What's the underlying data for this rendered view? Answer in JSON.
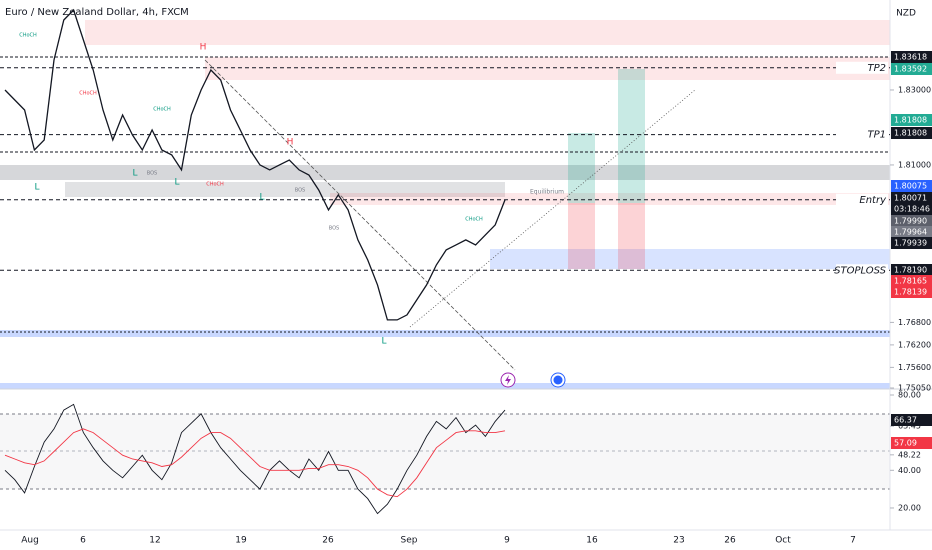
{
  "header": {
    "title": "Euro / New Zealand Dollar, 4h, FXCM",
    "currency": "NZD"
  },
  "chart_data": [
    {
      "type": "line",
      "color": "#131722",
      "values": [
        1.83,
        1.82733,
        1.82467,
        1.814,
        1.81667,
        1.838,
        1.84867,
        1.85133,
        1.84333,
        1.83533,
        1.82467,
        1.81667,
        1.82333,
        1.818,
        1.814,
        1.81933,
        1.814,
        1.81267,
        1.80867,
        1.82333,
        1.83,
        1.83533,
        1.83267,
        1.82467,
        1.81933,
        1.814,
        1.81,
        1.80867,
        1.81,
        1.81133,
        1.80867,
        1.80733,
        1.80333,
        1.798,
        1.802,
        1.798,
        1.79,
        1.78467,
        1.778,
        1.76867,
        1.76867,
        1.77,
        1.774,
        1.778,
        1.78333,
        1.78733,
        1.78867,
        1.79,
        1.78867,
        1.79133,
        1.794,
        1.80067
      ],
      "ylim": [
        1.7513,
        1.854
      ],
      "yticks": [
        {
          "value": 1.83,
          "label": "1.83000"
        },
        {
          "value": 1.81,
          "label": "1.81000"
        },
        {
          "value": 1.768,
          "label": "1.76800"
        },
        {
          "value": 1.762,
          "label": "1.76200"
        },
        {
          "value": 1.756,
          "label": "1.75600"
        },
        {
          "value": 1.7505,
          "label": "1.75050"
        }
      ],
      "levels": [
        {
          "name": "TP2",
          "value": 1.83592
        },
        {
          "name": "TP1",
          "value": 1.81808
        },
        {
          "name": "Entry",
          "value": 1.80071
        },
        {
          "name": "STOPLOSS",
          "value": 1.7819
        }
      ],
      "price_labels": [
        {
          "value": 1.83618,
          "color": "#131722"
        },
        {
          "value": 1.83592,
          "color": "#22ab94"
        },
        {
          "value": 1.81808,
          "color": "#22ab94"
        },
        {
          "value": 1.81808,
          "color": "#131722"
        },
        {
          "value": 1.80075,
          "color": "#2962ff"
        },
        {
          "value": 1.80071,
          "color": "#131722"
        },
        {
          "label": "03:18:46",
          "color": "#131722"
        },
        {
          "value": 1.7999,
          "label": "1.79990",
          "color": "#5d606b"
        },
        {
          "value": 1.79964,
          "color": "#787b86"
        },
        {
          "value": 1.79939,
          "color": "#131722"
        },
        {
          "value": 1.7819,
          "label": "1.78190",
          "color": "#131722"
        },
        {
          "value": 1.78165,
          "color": "#f23645"
        },
        {
          "value": 1.78139,
          "color": "#f23645"
        }
      ]
    },
    {
      "type": "line",
      "series": [
        {
          "color": "#131722",
          "values": [
            40,
            35,
            28,
            42,
            55,
            62,
            72,
            75,
            60,
            52,
            45,
            40,
            36,
            42,
            48,
            40,
            35,
            44,
            60,
            65,
            70,
            60,
            52,
            46,
            40,
            35,
            30,
            40,
            45,
            40,
            36,
            46,
            40,
            50,
            40,
            40,
            30,
            25,
            17,
            22,
            30,
            40,
            48,
            58,
            66,
            62,
            68,
            60,
            64,
            58,
            66,
            72
          ]
        },
        {
          "color": "#f23645",
          "values": [
            48,
            46,
            44,
            43,
            45,
            50,
            55,
            60,
            62,
            60,
            56,
            52,
            48,
            46,
            45,
            44,
            42,
            43,
            47,
            52,
            57,
            60,
            60,
            57,
            52,
            47,
            42,
            40,
            40,
            40,
            40,
            41,
            41,
            43,
            43,
            42,
            40,
            36,
            30,
            27,
            26,
            30,
            36,
            44,
            52,
            56,
            60,
            61,
            61,
            60,
            60,
            61
          ]
        }
      ],
      "ylim": [
        8.3,
        82.65
      ],
      "yticks": [
        {
          "value": 80,
          "label": "80.00"
        },
        63.45,
        48.22,
        {
          "value": 40,
          "label": "40.00"
        },
        {
          "value": 20,
          "label": "20.00"
        }
      ],
      "price_labels": [
        {
          "value": 66.37,
          "color": "#131722"
        },
        {
          "value": 57.09,
          "color": "#f23645"
        }
      ]
    }
  ],
  "time_axis": {
    "labels": [
      "Aug",
      "6",
      "12",
      "19",
      "26",
      "Sep",
      "9",
      "16",
      "23",
      "26",
      "Oct",
      "7"
    ]
  },
  "annotations": {
    "highs": [
      "H",
      "H"
    ],
    "lows": [
      "L",
      "L",
      "L",
      "L",
      "L"
    ],
    "choch_bull": [
      "CHoCH",
      "CHoCH",
      "CHoCH"
    ],
    "choch_bear": [
      "CHoCH",
      "CHoCH"
    ],
    "bos": [
      "BOS",
      "BOS",
      "BOS"
    ],
    "equilibrium": "Equilibrium"
  }
}
